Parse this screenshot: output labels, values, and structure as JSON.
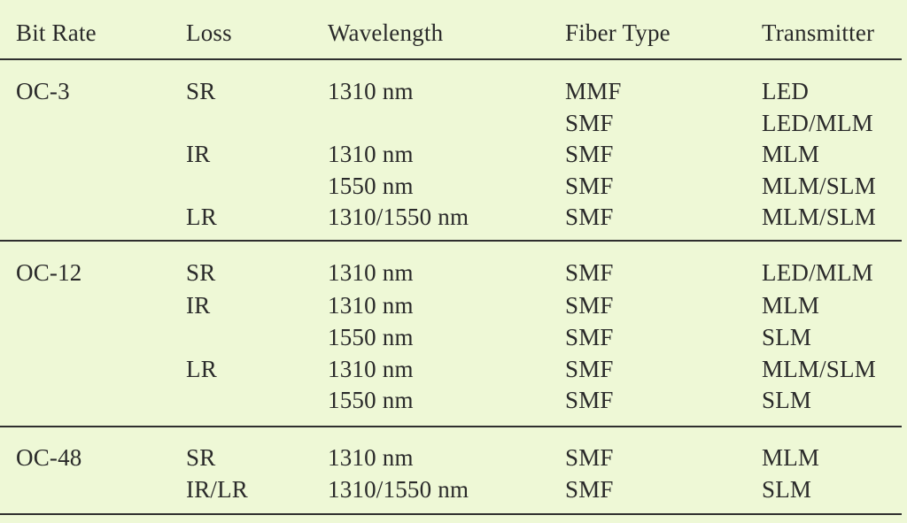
{
  "columns": [
    "Bit Rate",
    "Loss",
    "Wavelength",
    "Fiber Type",
    "Transmitter"
  ],
  "groups": [
    {
      "bit_rate": "OC-3",
      "rows": [
        {
          "loss": "SR",
          "wavelength": "1310 nm",
          "fiber": "MMF",
          "transmitter": "LED"
        },
        {
          "loss": "",
          "wavelength": "",
          "fiber": "SMF",
          "transmitter": "LED/MLM"
        },
        {
          "loss": "IR",
          "wavelength": "1310 nm",
          "fiber": "SMF",
          "transmitter": "MLM"
        },
        {
          "loss": "",
          "wavelength": "1550 nm",
          "fiber": "SMF",
          "transmitter": "MLM/SLM"
        },
        {
          "loss": "LR",
          "wavelength": "1310/1550 nm",
          "fiber": "SMF",
          "transmitter": "MLM/SLM"
        }
      ]
    },
    {
      "bit_rate": "OC-12",
      "rows": [
        {
          "loss": "SR",
          "wavelength": "1310 nm",
          "fiber": "SMF",
          "transmitter": "LED/MLM"
        },
        {
          "loss": "IR",
          "wavelength": "1310 nm",
          "fiber": "SMF",
          "transmitter": "MLM"
        },
        {
          "loss": "",
          "wavelength": "1550 nm",
          "fiber": "SMF",
          "transmitter": "SLM"
        },
        {
          "loss": "LR",
          "wavelength": "1310 nm",
          "fiber": "SMF",
          "transmitter": "MLM/SLM"
        },
        {
          "loss": "",
          "wavelength": "1550 nm",
          "fiber": "SMF",
          "transmitter": "SLM"
        }
      ]
    },
    {
      "bit_rate": "OC-48",
      "rows": [
        {
          "loss": "SR",
          "wavelength": "1310 nm",
          "fiber": "SMF",
          "transmitter": "MLM"
        },
        {
          "loss": "IR/LR",
          "wavelength": "1310/1550 nm",
          "fiber": "SMF",
          "transmitter": "SLM"
        }
      ]
    }
  ]
}
